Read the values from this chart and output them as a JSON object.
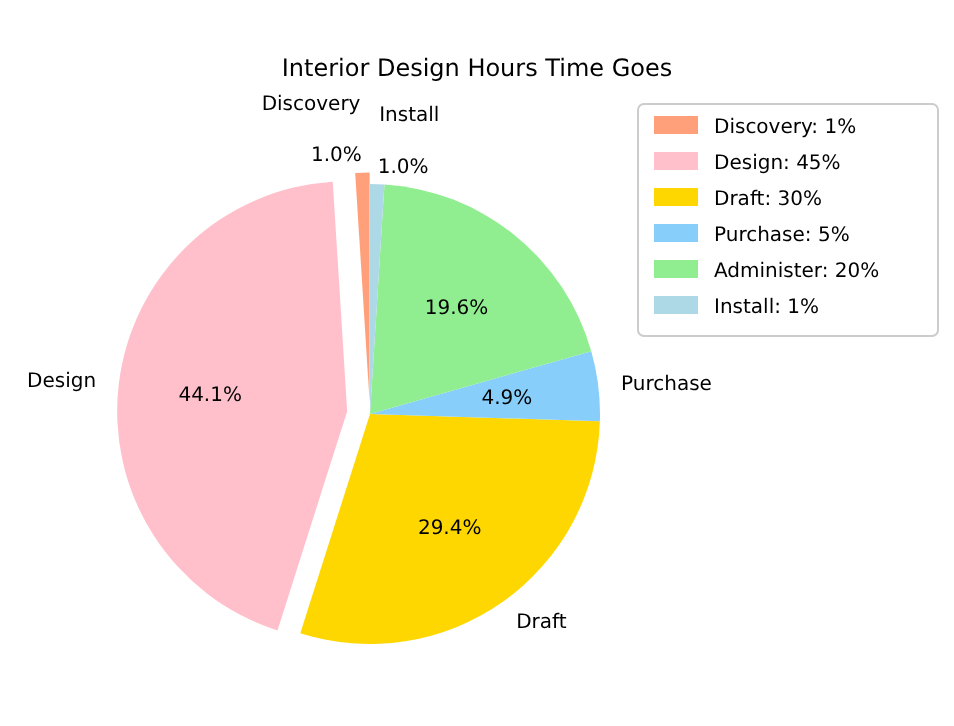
{
  "chart_data": {
    "type": "pie",
    "title": "Interior Design Hours Time Goes",
    "categories": [
      "Discovery: 1%",
      "Design: 45%",
      "Draft: 30%",
      "Purchase: 5%",
      "Administer: 20%",
      "Install: 1%"
    ],
    "values": [
      1.0,
      44.1,
      29.4,
      4.9,
      19.6,
      1.0
    ],
    "colors": [
      "#ffa07a",
      "#ffc0cb",
      "#ffd700",
      "#87cefa",
      "#90ee90",
      "#add8e6"
    ],
    "value_labels": [
      "1.0%",
      "44.1%",
      "29.4%",
      "4.9%",
      "19.6%",
      "1.0%"
    ],
    "annotations": [
      {
        "text": "Discovery",
        "x": "Discovery: 1%"
      },
      {
        "text": "Design",
        "x": "Design: 45%"
      },
      {
        "text": "Draft",
        "x": "Draft: 30%"
      },
      {
        "text": "Purchase",
        "x": "Purchase: 5%"
      },
      {
        "text": "Install",
        "x": "Install: 1%"
      }
    ],
    "legend": "top right"
  }
}
